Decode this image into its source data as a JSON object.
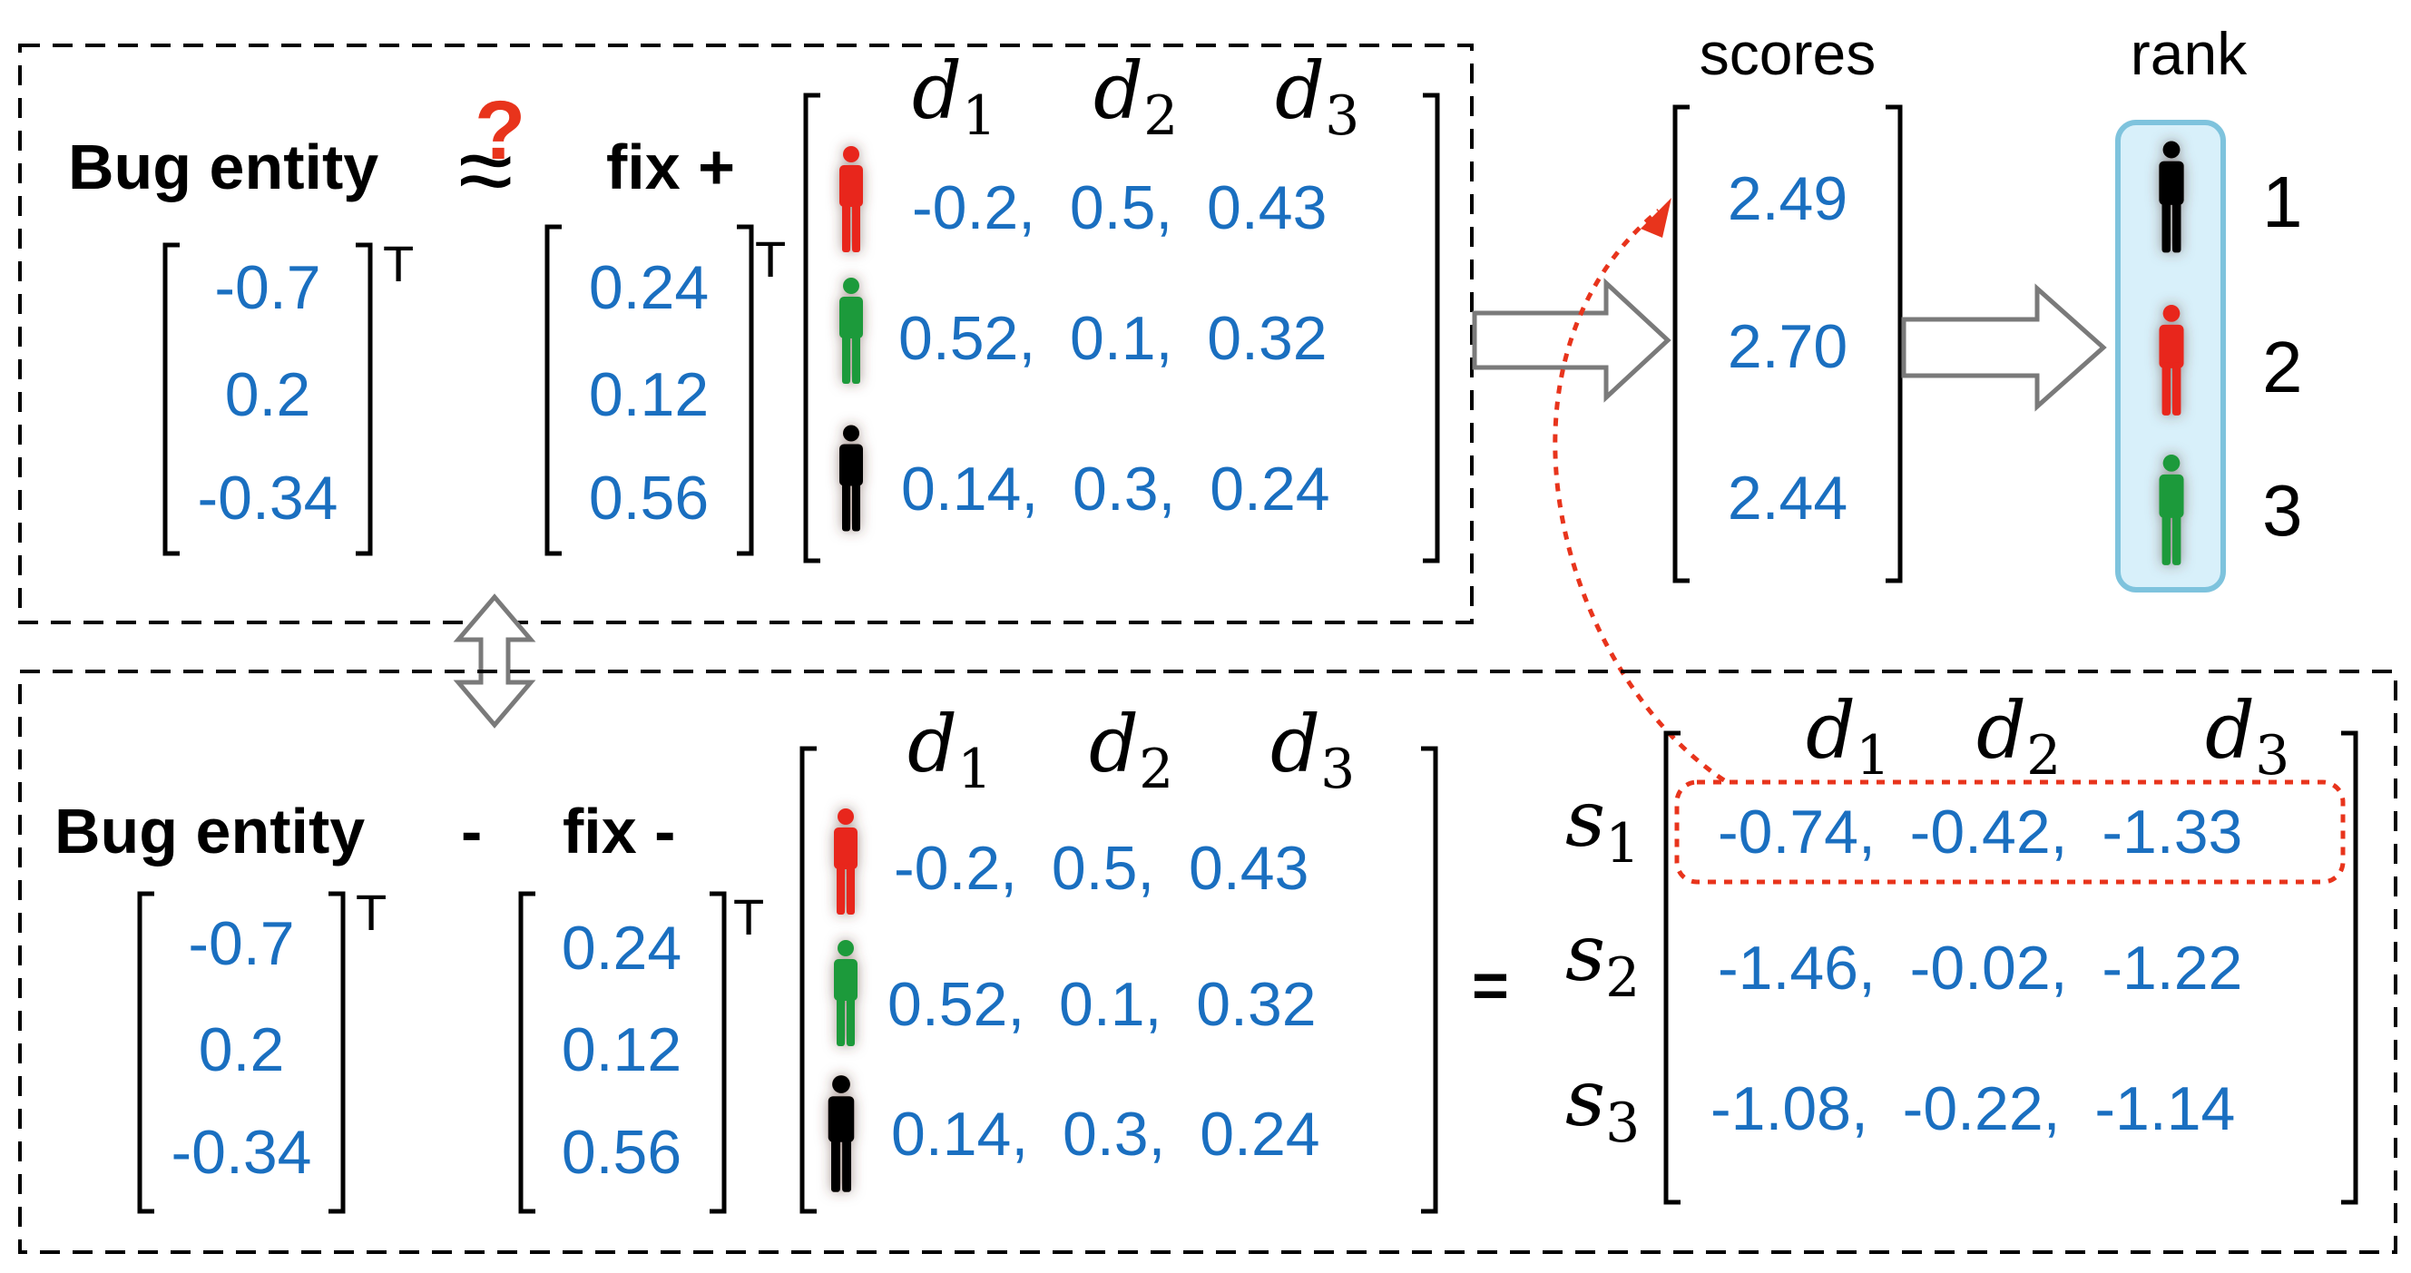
{
  "top": {
    "label_bug": "Bug entity",
    "op_symbol": "≈",
    "question_mark": "?",
    "label_fix": "fix +",
    "bug_vector": [
      "-0.7",
      "0.2",
      "-0.34"
    ],
    "fix_vector": [
      "0.24",
      "0.12",
      "0.56"
    ],
    "transpose": "T",
    "dims": [
      "d",
      "d",
      "d"
    ],
    "dim_subs": [
      "1",
      "2",
      "3"
    ],
    "devs": [
      {
        "color": "#e8251b",
        "values": "-0.2,  0.5,  0.43"
      },
      {
        "color": "#1f9a3a",
        "values": "0.52,  0.1,  0.32"
      },
      {
        "color": "#000000",
        "values": "0.14,  0.3,  0.24"
      }
    ]
  },
  "scores": {
    "title": "scores",
    "values": [
      "2.49",
      "2.70",
      "2.44"
    ]
  },
  "rank": {
    "title": "rank",
    "items": [
      {
        "color": "#000000",
        "position": "1"
      },
      {
        "color": "#e8251b",
        "position": "2"
      },
      {
        "color": "#1f9a3a",
        "position": "3"
      }
    ]
  },
  "bottom": {
    "label_bug": "Bug entity",
    "op_minus": "-",
    "label_fix": "fix -",
    "bug_vector": [
      "-0.7",
      "0.2",
      "-0.34"
    ],
    "fix_vector": [
      "0.24",
      "0.12",
      "0.56"
    ],
    "transpose": "T",
    "dims": [
      "d",
      "d",
      "d"
    ],
    "dim_subs": [
      "1",
      "2",
      "3"
    ],
    "devs": [
      {
        "color": "#e8251b",
        "values": "-0.2,  0.5,  0.43"
      },
      {
        "color": "#1f9a3a",
        "values": "0.52,  0.1,  0.32"
      },
      {
        "color": "#000000",
        "values": "0.14,  0.3,  0.24"
      }
    ],
    "equals": "=",
    "s_labels": [
      "s",
      "s",
      "s"
    ],
    "s_subs": [
      "1",
      "2",
      "3"
    ],
    "result_dims": [
      "d",
      "d",
      "d"
    ],
    "result_dim_subs": [
      "1",
      "2",
      "3"
    ],
    "result_rows": [
      "-0.74,  -0.42,  -1.33",
      "-1.46,  -0.02,  -1.22",
      "-1.08,  -0.22,  -1.14"
    ]
  },
  "icons": {
    "person_icon": "person-icon",
    "double_arrow": "double-arrow-icon",
    "right_arrow": "right-arrow-icon"
  }
}
